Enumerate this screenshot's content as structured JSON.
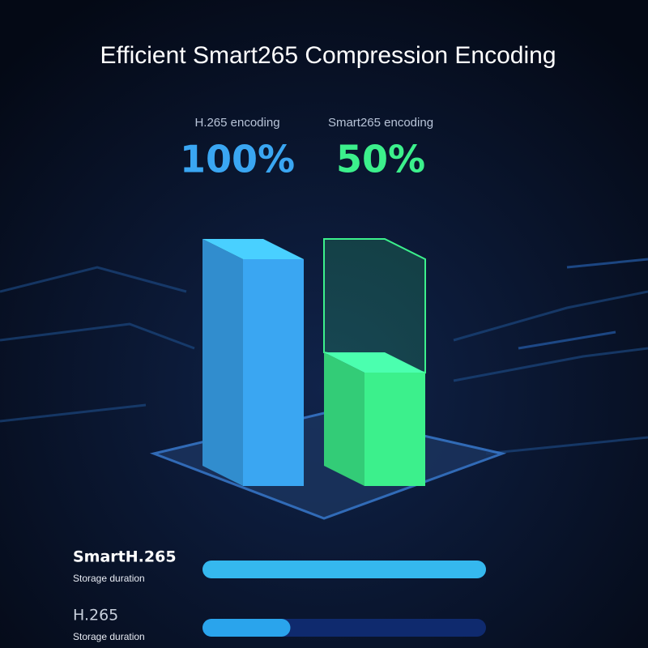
{
  "chart_data": [
    {
      "type": "bar3d",
      "title": "Efficient Smart265 Compression Encoding",
      "categories": [
        "H.265 encoding",
        "Smart265 encoding"
      ],
      "values": [
        100,
        50
      ],
      "value_labels": [
        "100%",
        "50%"
      ],
      "colors": [
        "#3aa6f2",
        "#3cf08c"
      ],
      "ylim": [
        0,
        100
      ]
    },
    {
      "type": "progress",
      "categories": [
        "SmartH.265",
        "H.265"
      ],
      "sublabels": [
        "Storage duration",
        "Storage duration"
      ],
      "values": [
        100,
        31
      ],
      "xlim": [
        0,
        100
      ],
      "colors": [
        "#35b8ee",
        "#2aa4ec"
      ]
    }
  ]
}
